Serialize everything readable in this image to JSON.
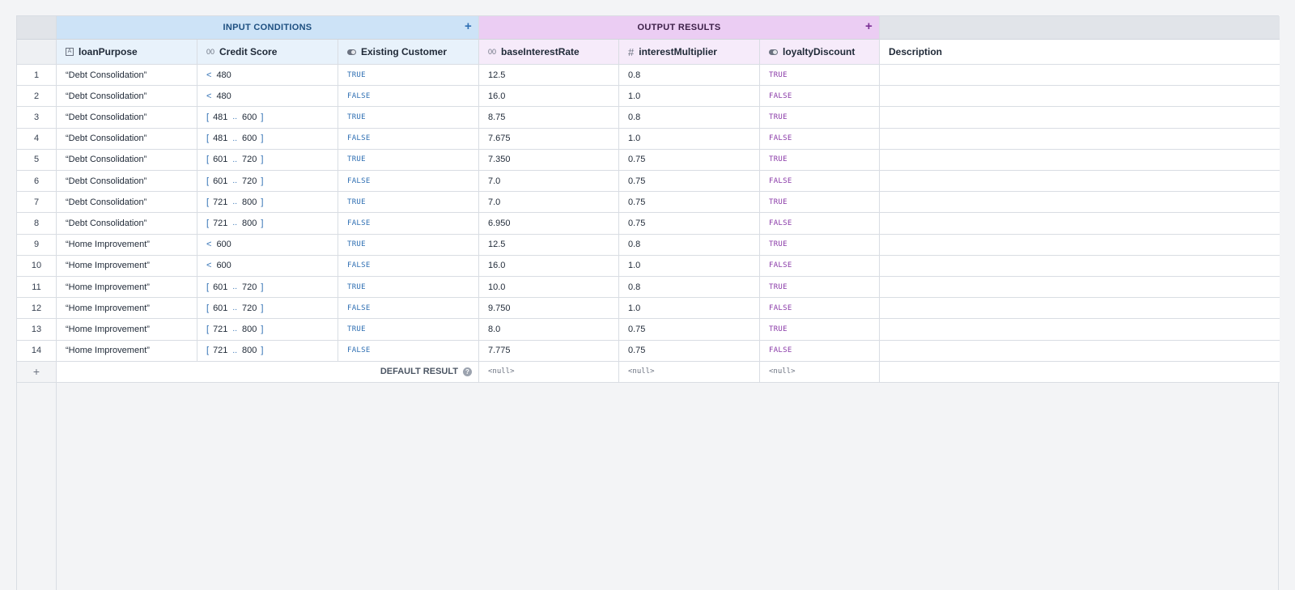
{
  "groups": {
    "input_title": "INPUT CONDITIONS",
    "output_title": "OUTPUT RESULTS",
    "add_glyph": "+"
  },
  "columns": [
    {
      "label": "loanPurpose",
      "icon": "text-type-icon",
      "glyph": "A",
      "group": "input"
    },
    {
      "label": "Credit Score",
      "icon": "number-type-icon",
      "glyph": "00",
      "group": "input"
    },
    {
      "label": "Existing Customer",
      "icon": "boolean-type-icon",
      "glyph": "",
      "group": "input"
    },
    {
      "label": "baseInterestRate",
      "icon": "number-type-icon",
      "glyph": "00",
      "group": "output"
    },
    {
      "label": "interestMultiplier",
      "icon": "hash-type-icon",
      "glyph": "#",
      "group": "output"
    },
    {
      "label": "loyaltyDiscount",
      "icon": "boolean-type-icon",
      "glyph": "",
      "group": "output"
    },
    {
      "label": "Description",
      "icon": "",
      "glyph": "",
      "group": "none"
    }
  ],
  "rows": [
    {
      "n": "1",
      "purpose": "“Debt Consolidation”",
      "score": {
        "kind": "lt",
        "op": "<",
        "a": "480"
      },
      "existing": "TRUE",
      "rate": "12.5",
      "mult": "0.8",
      "loyal": "TRUE"
    },
    {
      "n": "2",
      "purpose": "“Debt Consolidation”",
      "score": {
        "kind": "lt",
        "op": "<",
        "a": "480"
      },
      "existing": "FALSE",
      "rate": "16.0",
      "mult": "1.0",
      "loyal": "FALSE"
    },
    {
      "n": "3",
      "purpose": "“Debt Consolidation”",
      "score": {
        "kind": "range",
        "a": "481",
        "b": "600"
      },
      "existing": "TRUE",
      "rate": "8.75",
      "mult": "0.8",
      "loyal": "TRUE"
    },
    {
      "n": "4",
      "purpose": "“Debt Consolidation”",
      "score": {
        "kind": "range",
        "a": "481",
        "b": "600"
      },
      "existing": "FALSE",
      "rate": "7.675",
      "mult": "1.0",
      "loyal": "FALSE"
    },
    {
      "n": "5",
      "purpose": "“Debt Consolidation”",
      "score": {
        "kind": "range",
        "a": "601",
        "b": "720"
      },
      "existing": "TRUE",
      "rate": "7.350",
      "mult": "0.75",
      "loyal": "TRUE"
    },
    {
      "n": "6",
      "purpose": "“Debt Consolidation”",
      "score": {
        "kind": "range",
        "a": "601",
        "b": "720"
      },
      "existing": "FALSE",
      "rate": "7.0",
      "mult": "0.75",
      "loyal": "FALSE"
    },
    {
      "n": "7",
      "purpose": "“Debt Consolidation”",
      "score": {
        "kind": "range",
        "a": "721",
        "b": "800"
      },
      "existing": "TRUE",
      "rate": "7.0",
      "mult": "0.75",
      "loyal": "TRUE"
    },
    {
      "n": "8",
      "purpose": "“Debt Consolidation”",
      "score": {
        "kind": "range",
        "a": "721",
        "b": "800"
      },
      "existing": "FALSE",
      "rate": "6.950",
      "mult": "0.75",
      "loyal": "FALSE"
    },
    {
      "n": "9",
      "purpose": "“Home Improvement”",
      "score": {
        "kind": "lt",
        "op": "<",
        "a": "600"
      },
      "existing": "TRUE",
      "rate": "12.5",
      "mult": "0.8",
      "loyal": "TRUE"
    },
    {
      "n": "10",
      "purpose": "“Home Improvement”",
      "score": {
        "kind": "lt",
        "op": "<",
        "a": "600"
      },
      "existing": "FALSE",
      "rate": "16.0",
      "mult": "1.0",
      "loyal": "FALSE"
    },
    {
      "n": "11",
      "purpose": "“Home Improvement”",
      "score": {
        "kind": "range",
        "a": "601",
        "b": "720"
      },
      "existing": "TRUE",
      "rate": "10.0",
      "mult": "0.8",
      "loyal": "TRUE"
    },
    {
      "n": "12",
      "purpose": "“Home Improvement”",
      "score": {
        "kind": "range",
        "a": "601",
        "b": "720"
      },
      "existing": "FALSE",
      "rate": "9.750",
      "mult": "1.0",
      "loyal": "FALSE"
    },
    {
      "n": "13",
      "purpose": "“Home Improvement”",
      "score": {
        "kind": "range",
        "a": "721",
        "b": "800"
      },
      "existing": "TRUE",
      "rate": "8.0",
      "mult": "0.75",
      "loyal": "TRUE"
    },
    {
      "n": "14",
      "purpose": "“Home Improvement”",
      "score": {
        "kind": "range",
        "a": "721",
        "b": "800"
      },
      "existing": "FALSE",
      "rate": "7.775",
      "mult": "0.75",
      "loyal": "FALSE"
    }
  ],
  "range_syntax": {
    "open": "[",
    "sep": "..",
    "close": "]"
  },
  "default_row": {
    "add_glyph": "+",
    "label": "DEFAULT RESULT",
    "help_glyph": "?",
    "values": [
      "<null>",
      "<null>",
      "<null>"
    ]
  },
  "colors": {
    "input_group": "#cde3f7",
    "output_group": "#ebcdf3",
    "input_accent": "#2f6fb3",
    "output_accent": "#8a3aa8"
  }
}
